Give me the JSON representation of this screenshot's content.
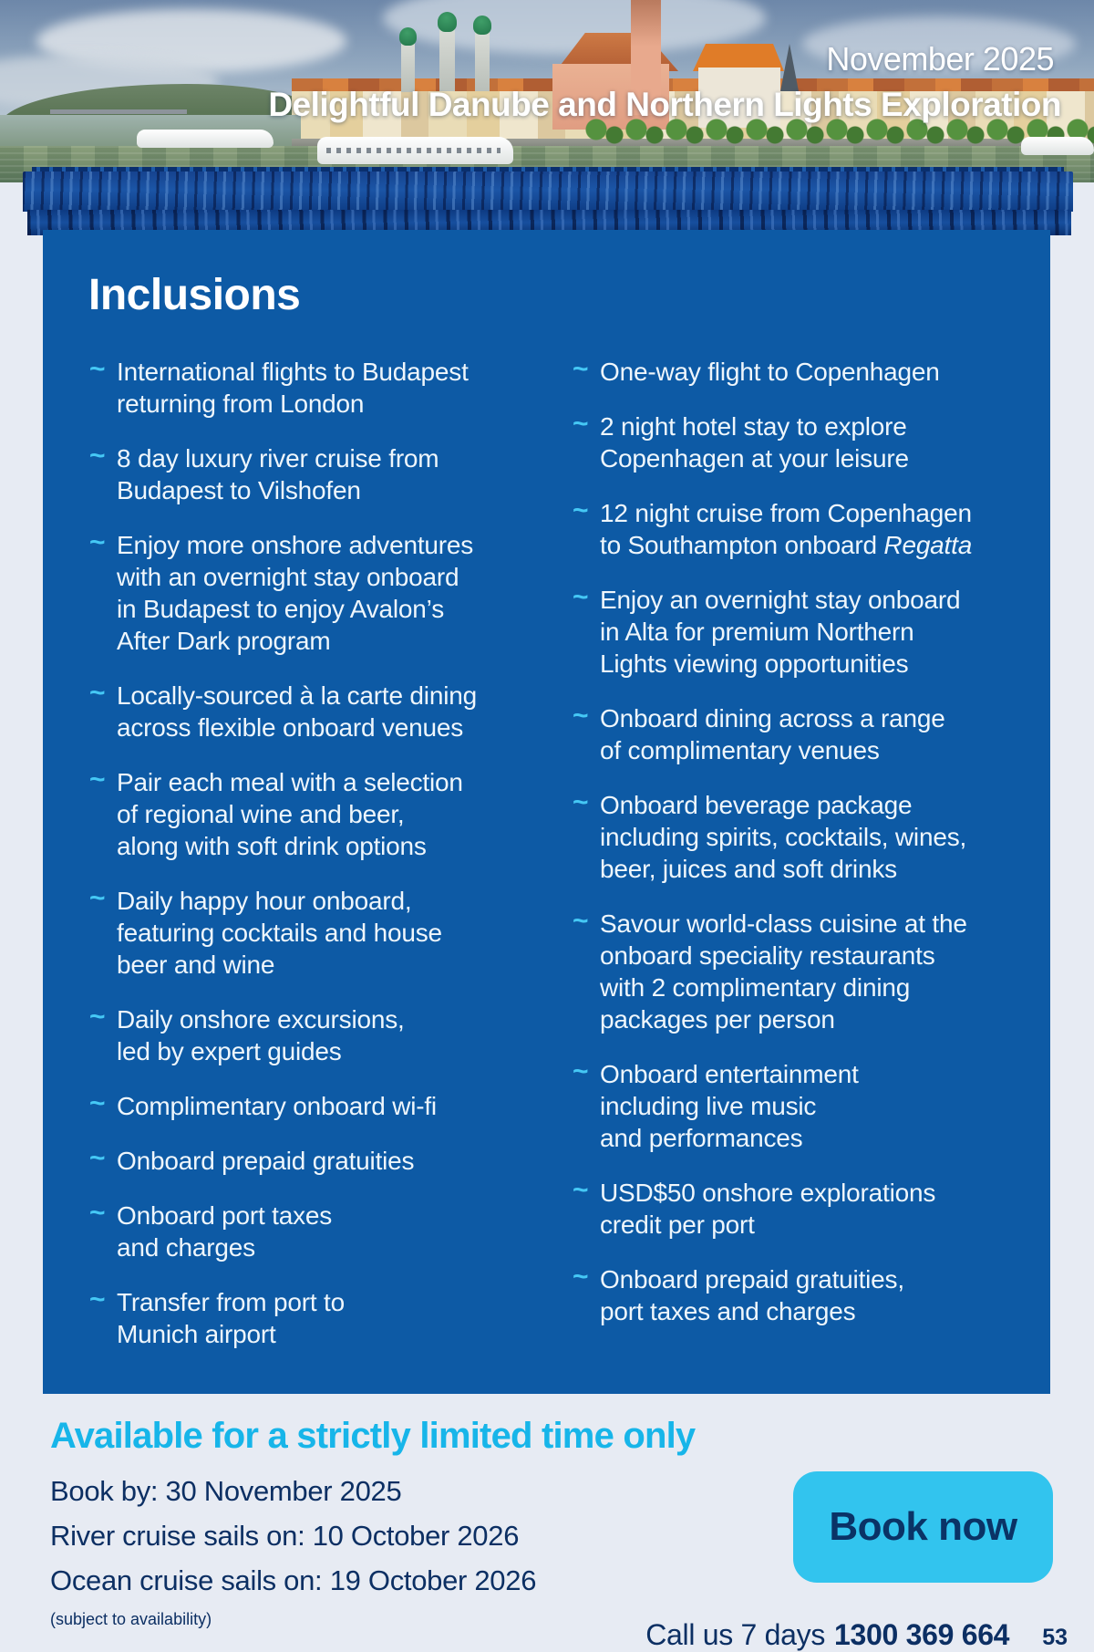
{
  "header": {
    "issue_date": "November 2025",
    "title": "Delightful Danube and Northern Lights Exploration"
  },
  "inclusions": {
    "heading": "Inclusions",
    "left_items": [
      {
        "text": "International flights to Budapest\nreturning from London"
      },
      {
        "text": "8 day luxury river cruise from\nBudapest to Vilshofen"
      },
      {
        "text": "Enjoy more onshore adventures\nwith an overnight stay onboard\nin Budapest to enjoy Avalon’s\nAfter Dark program"
      },
      {
        "text": "Locally-sourced à la carte dining\nacross flexible onboard venues"
      },
      {
        "text": "Pair each meal with a selection\nof regional wine and beer,\nalong with soft drink options"
      },
      {
        "text": "Daily happy hour onboard,\nfeaturing cocktails and house\nbeer and wine"
      },
      {
        "text": "Daily onshore excursions,\nled by expert guides"
      },
      {
        "text": "Complimentary onboard wi-fi"
      },
      {
        "text": "Onboard prepaid gratuities"
      },
      {
        "text": "Onboard port taxes\nand charges"
      },
      {
        "text": "Transfer from port to\nMunich airport"
      }
    ],
    "right_items": [
      {
        "text": "One-way flight to Copenhagen"
      },
      {
        "text": "2 night hotel stay to explore\nCopenhagen at your leisure"
      },
      {
        "text": "12 night cruise from Copenhagen\nto Southampton onboard ",
        "italic": "Regatta"
      },
      {
        "text": "Enjoy an overnight stay onboard\nin Alta for premium Northern\nLights viewing opportunities"
      },
      {
        "text": "Onboard dining across a range\nof complimentary venues"
      },
      {
        "text": "Onboard beverage package\nincluding spirits, cocktails, wines,\nbeer, juices and soft drinks"
      },
      {
        "text": "Savour world-class cuisine at the\nonboard speciality restaurants\nwith 2 complimentary dining\npackages per person"
      },
      {
        "text": "Onboard entertainment\nincluding live music\nand performances"
      },
      {
        "text": "USD$50 onshore explorations\ncredit per port"
      },
      {
        "text": "Onboard prepaid gratuities,\nport taxes and charges"
      }
    ],
    "bullet_glyph": "~"
  },
  "offer": {
    "heading": "Available for a strictly limited time only",
    "book_by": "Book by: 30 November 2025",
    "river_sails": "River cruise sails on: 10 October 2026",
    "ocean_sails": "Ocean cruise sails on: 19 October 2026",
    "disclaimer": "(subject to availability)"
  },
  "cta": {
    "book_now_label": "Book now",
    "call_prefix": "Call us 7 days",
    "phone": "1300 369 664",
    "page_number": "53"
  },
  "colors": {
    "panel_blue": "#0d5aa5",
    "bullet_cyan": "#45c8f5",
    "accent_cyan": "#17b5e9",
    "button_cyan": "#32c4ee",
    "navy_text": "#0c2f63",
    "page_background": "#e7ebf3",
    "curtain_blue": "#1b55a6"
  }
}
